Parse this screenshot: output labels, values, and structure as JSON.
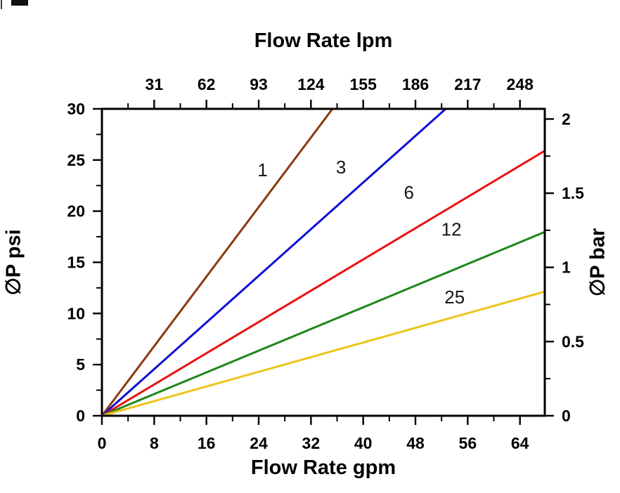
{
  "chart_data": {
    "type": "line",
    "grid": false,
    "axes": {
      "top": {
        "label": "Flow Rate lpm",
        "ticks": [
          31,
          62,
          93,
          124,
          155,
          186,
          217,
          248
        ],
        "lpm_per_gpm": 3.875
      },
      "bottom": {
        "label": "Flow Rate gpm",
        "ticks": [
          0,
          8,
          16,
          24,
          32,
          40,
          48,
          56,
          64
        ],
        "range": [
          0,
          67.8
        ]
      },
      "left": {
        "label": "∅P psi",
        "ticks": [
          0,
          5,
          10,
          15,
          20,
          25,
          30
        ],
        "range": [
          0,
          30
        ]
      },
      "right": {
        "label": "∅P bar",
        "ticks": [
          0,
          0.5,
          1,
          1.5,
          2
        ],
        "psi_per_bar": 14.504
      }
    },
    "series": [
      {
        "label": "1",
        "color": "#8a3a0d",
        "slope_psi_per_gpm": 0.85,
        "label_at": [
          24.6,
          23.4
        ]
      },
      {
        "label": "3",
        "color": "#0f0fd6",
        "slope_psi_per_gpm": 0.57,
        "label_at": [
          36.6,
          23.7
        ]
      },
      {
        "label": "6",
        "color": "#ea1010",
        "slope_psi_per_gpm": 0.382,
        "label_at": [
          47.0,
          21.2
        ]
      },
      {
        "label": "12",
        "color": "#1c871c",
        "slope_psi_per_gpm": 0.265,
        "label_at": [
          53.5,
          17.6
        ]
      },
      {
        "label": "25",
        "color": "#edc41a",
        "slope_psi_per_gpm": 0.179,
        "label_at": [
          54.0,
          11.0
        ]
      }
    ]
  }
}
